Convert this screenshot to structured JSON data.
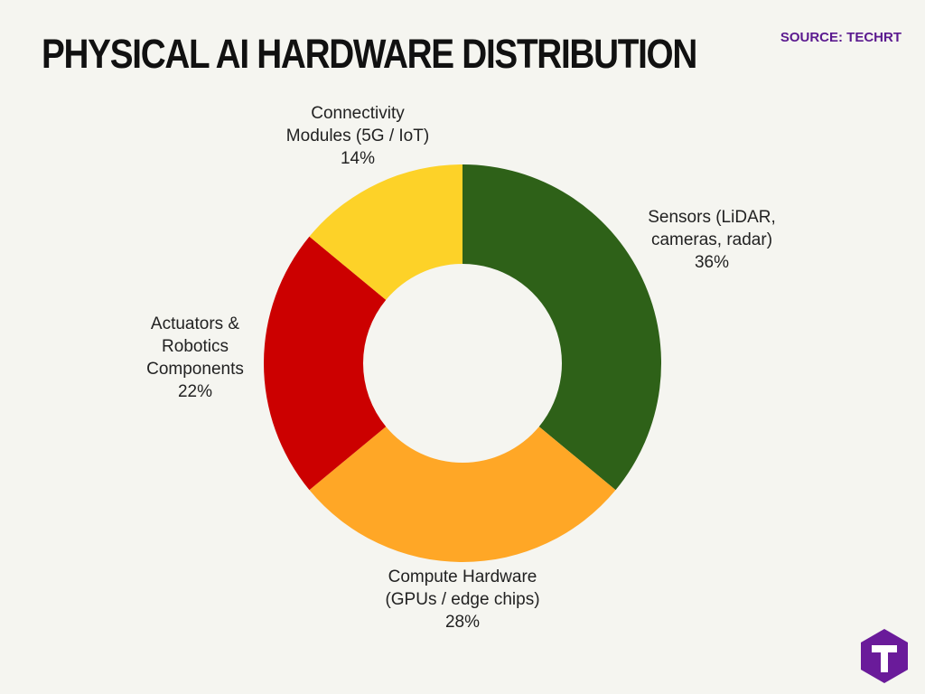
{
  "header": {
    "title": "PHYSICAL AI HARDWARE DISTRIBUTION",
    "source": "SOURCE: TECHRT"
  },
  "logo": {
    "icon": "techrt-t-hexagon-icon",
    "color": "#6a1b9a"
  },
  "chart_data": {
    "type": "pie",
    "donut": true,
    "title": "PHYSICAL AI HARDWARE DISTRIBUTION",
    "legend": "none",
    "slices": [
      {
        "label_lines": [
          "Sensors (LiDAR,",
          "cameras, radar)"
        ],
        "value": 36,
        "value_label": "36%",
        "color": "#2e6118"
      },
      {
        "label_lines": [
          "Compute Hardware",
          "(GPUs / edge chips)"
        ],
        "value": 28,
        "value_label": "28%",
        "color": "#ffa726"
      },
      {
        "label_lines": [
          "Actuators &",
          "Robotics",
          "Components"
        ],
        "value": 22,
        "value_label": "22%",
        "color": "#cc0000"
      },
      {
        "label_lines": [
          "Connectivity",
          "Modules (5G / IoT)"
        ],
        "value": 14,
        "value_label": "14%",
        "color": "#fdd228"
      }
    ]
  }
}
